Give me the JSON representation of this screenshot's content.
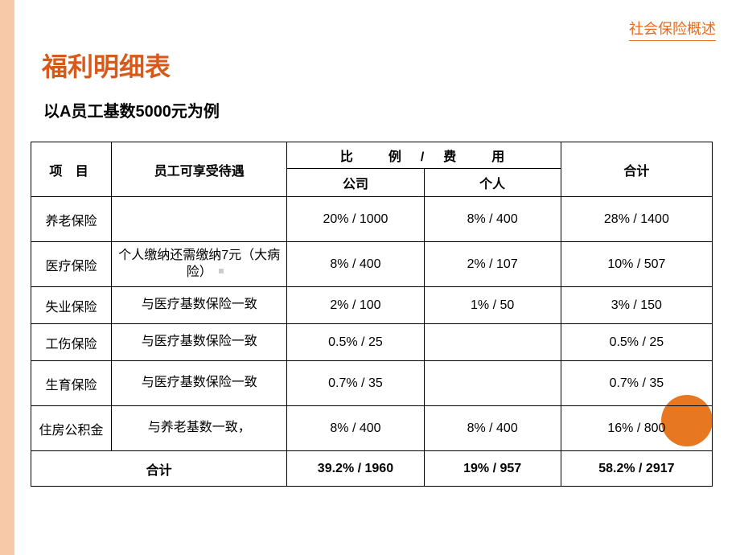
{
  "header_link": "社会保险概述",
  "title": "福利明细表",
  "subtitle": "以A员工基数5000元为例",
  "headers": {
    "item": "项    目",
    "benefit": "员工可享受待遇",
    "ratio_cost": "比　　例　/　费　　用",
    "company": "公司",
    "individual": "个人",
    "total": "合计"
  },
  "rows": [
    {
      "item": "养老保险",
      "benefit": "",
      "company": "20%    /   1000",
      "individual": "8%    /    400",
      "total": "28% /   1400"
    },
    {
      "item": "医疗保险",
      "benefit": "个人缴纳还需缴纳7元（大病险）",
      "company": "8%    /   400",
      "individual": "2%   /   107",
      "total": "10% /    507"
    },
    {
      "item": "失业保险",
      "benefit": "与医疗基数保险一致",
      "company": "2%     /    100",
      "individual": "1%   /     50",
      "total": "3% /    150"
    },
    {
      "item": "工伤保险",
      "benefit": "与医疗基数保险一致",
      "company": "0.5% /     25",
      "individual": "",
      "total": "0.5% /     25"
    },
    {
      "item": "生育保险",
      "benefit": "与医疗基数保险一致",
      "company": "0.7% /     35",
      "individual": "",
      "total": "0.7% /     35"
    },
    {
      "item": "住房公积金",
      "benefit": "与养老基数一致，",
      "company": "8%     /   400",
      "individual": "8%     /   400",
      "total": "16%     /  800"
    }
  ],
  "totals": {
    "label": "合计",
    "company": "39.2% / 1960",
    "individual": "19% / 957",
    "total": "58.2% /   2917"
  },
  "colors": {
    "left_bar": "#f7c9a8",
    "accent": "#e66c1e",
    "title": "#d85a1a",
    "circle": "#e87722",
    "border": "#000000"
  }
}
